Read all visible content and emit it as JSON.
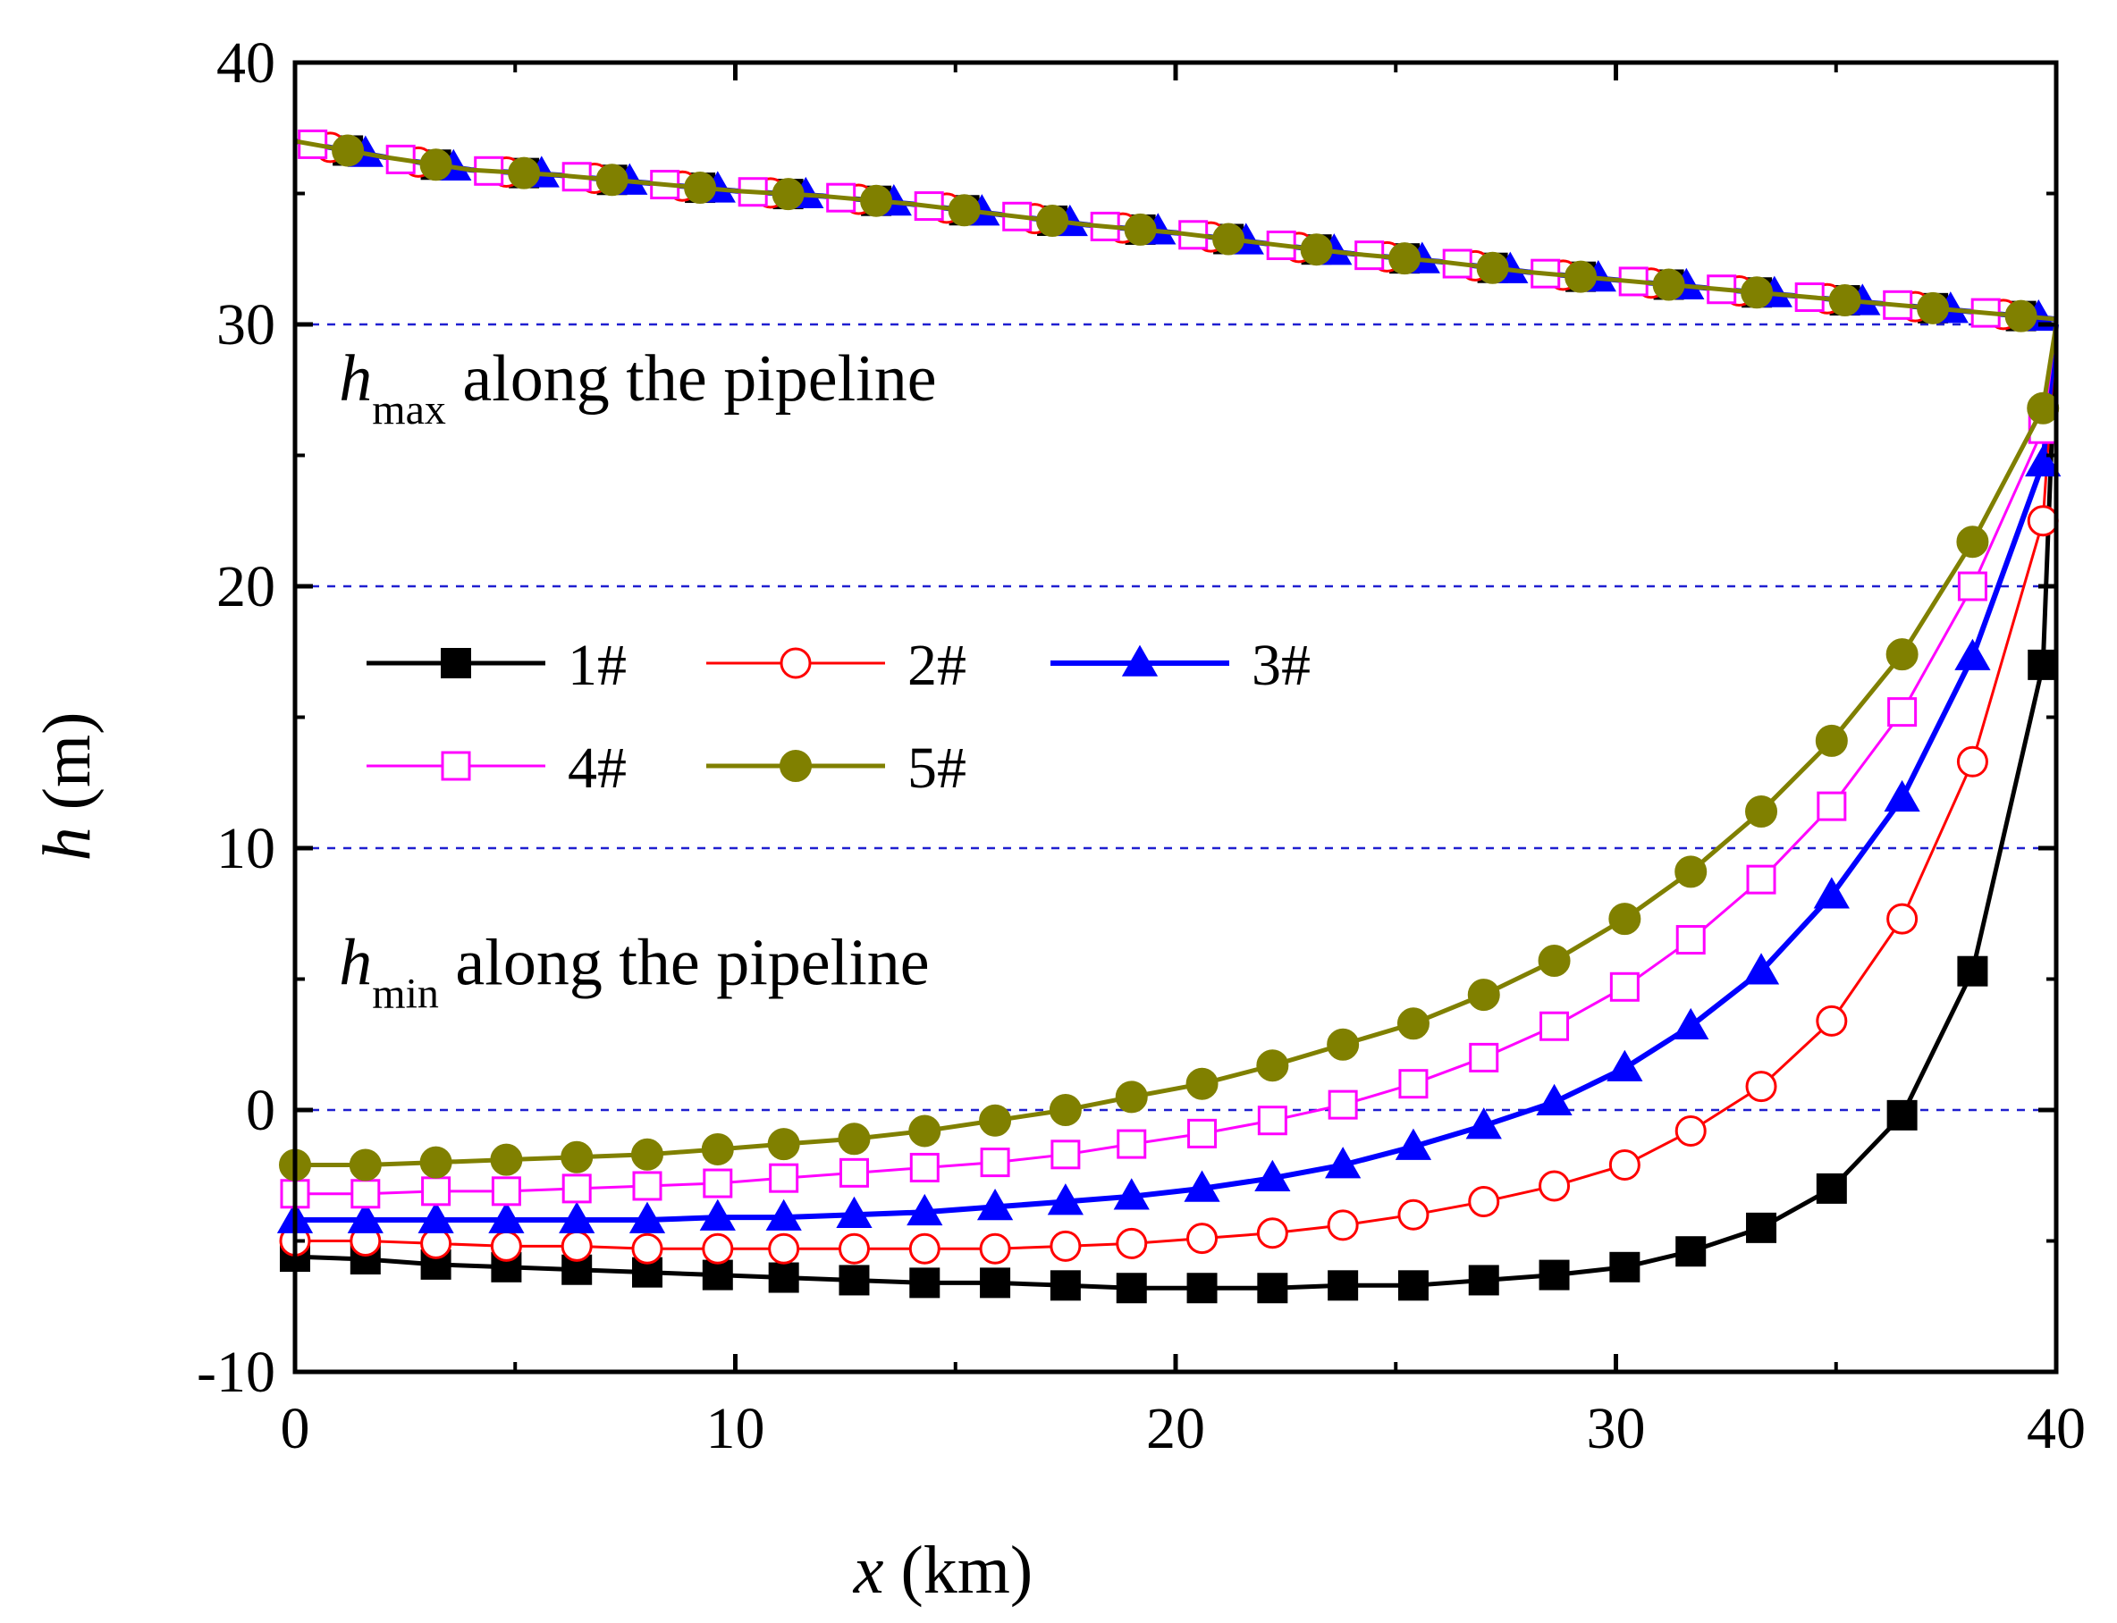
{
  "chart_data": {
    "type": "line",
    "title": "",
    "xlabel_var": "x",
    "xlabel_unit": " (km)",
    "ylabel_var": "h",
    "ylabel_unit": " (m)",
    "xlim": [
      0,
      40
    ],
    "ylim": [
      -10,
      40
    ],
    "xticks": [
      0,
      10,
      20,
      30,
      40
    ],
    "yticks": [
      -10,
      0,
      10,
      20,
      30,
      40
    ],
    "xtick_labels": [
      "0",
      "10",
      "20",
      "30",
      "40"
    ],
    "ytick_labels": [
      "-10",
      "0",
      "10",
      "20",
      "30",
      "40"
    ],
    "reference_lines_y": [
      0,
      10,
      20,
      30
    ],
    "reference_line_color": "#1f1fd0",
    "annotations": [
      {
        "var": "h",
        "sub": "max",
        "text": " along the pipeline",
        "anchor": [
          1.0,
          27.1
        ]
      },
      {
        "var": "h",
        "sub": "min",
        "text": " along the pipeline",
        "anchor": [
          1.0,
          4.8
        ]
      }
    ],
    "legend": {
      "position": "center-left",
      "columns": 3
    },
    "series": [
      {
        "name": "1#",
        "color": "#000000",
        "marker": "square-filled",
        "hmax_x": [
          0,
          2,
          4,
          6,
          8,
          10,
          12,
          14,
          16,
          18,
          20,
          22,
          24,
          26,
          28,
          30,
          32,
          34,
          36,
          38,
          40
        ],
        "hmax_y": [
          37.0,
          36.4,
          35.9,
          35.7,
          35.4,
          35.1,
          34.9,
          34.6,
          34.2,
          33.8,
          33.5,
          33.1,
          32.7,
          32.4,
          32.0,
          31.7,
          31.4,
          31.1,
          30.8,
          30.5,
          30.2
        ],
        "hmin_x": [
          0,
          1.6,
          3.2,
          4.8,
          6.4,
          8.0,
          9.6,
          11.1,
          12.7,
          14.3,
          15.9,
          17.5,
          19.0,
          20.6,
          22.2,
          23.8,
          25.4,
          27.0,
          28.6,
          30.2,
          31.7,
          33.3,
          34.9,
          36.5,
          38.1,
          39.7,
          40.0
        ],
        "hmin_y": [
          -5.6,
          -5.7,
          -5.9,
          -6.0,
          -6.1,
          -6.2,
          -6.3,
          -6.4,
          -6.5,
          -6.6,
          -6.6,
          -6.7,
          -6.8,
          -6.8,
          -6.8,
          -6.7,
          -6.7,
          -6.5,
          -6.3,
          -6.0,
          -5.4,
          -4.5,
          -3.0,
          -0.2,
          5.3,
          17.0,
          30.0
        ]
      },
      {
        "name": "2#",
        "color": "#ff0000",
        "marker": "circle-open",
        "hmax_x": [
          0,
          2,
          4,
          6,
          8,
          10,
          12,
          14,
          16,
          18,
          20,
          22,
          24,
          26,
          28,
          30,
          32,
          34,
          36,
          38,
          40
        ],
        "hmax_y": [
          37.0,
          36.4,
          35.9,
          35.7,
          35.4,
          35.1,
          34.9,
          34.6,
          34.2,
          33.8,
          33.5,
          33.1,
          32.7,
          32.4,
          32.0,
          31.7,
          31.4,
          31.1,
          30.8,
          30.5,
          30.2
        ],
        "hmin_x": [
          0,
          1.6,
          3.2,
          4.8,
          6.4,
          8.0,
          9.6,
          11.1,
          12.7,
          14.3,
          15.9,
          17.5,
          19.0,
          20.6,
          22.2,
          23.8,
          25.4,
          27.0,
          28.6,
          30.2,
          31.7,
          33.3,
          34.9,
          36.5,
          38.1,
          39.7,
          40.0
        ],
        "hmin_y": [
          -5.0,
          -5.0,
          -5.1,
          -5.2,
          -5.2,
          -5.3,
          -5.3,
          -5.3,
          -5.3,
          -5.3,
          -5.3,
          -5.2,
          -5.1,
          -4.9,
          -4.7,
          -4.4,
          -4.0,
          -3.5,
          -2.9,
          -2.1,
          -0.8,
          0.9,
          3.4,
          7.3,
          13.3,
          22.5,
          30.0
        ]
      },
      {
        "name": "3#",
        "color": "#0000ff",
        "marker": "triangle-filled",
        "hmax_x": [
          0,
          2,
          4,
          6,
          8,
          10,
          12,
          14,
          16,
          18,
          20,
          22,
          24,
          26,
          28,
          30,
          32,
          34,
          36,
          38,
          40
        ],
        "hmax_y": [
          37.0,
          36.4,
          35.9,
          35.7,
          35.4,
          35.1,
          34.9,
          34.6,
          34.2,
          33.8,
          33.5,
          33.1,
          32.7,
          32.4,
          32.0,
          31.7,
          31.4,
          31.1,
          30.8,
          30.5,
          30.2
        ],
        "hmin_x": [
          0,
          1.6,
          3.2,
          4.8,
          6.4,
          8.0,
          9.6,
          11.1,
          12.7,
          14.3,
          15.9,
          17.5,
          19.0,
          20.6,
          22.2,
          23.8,
          25.4,
          27.0,
          28.6,
          30.2,
          31.7,
          33.3,
          34.9,
          36.5,
          38.1,
          39.7,
          40.0
        ],
        "hmin_y": [
          -4.2,
          -4.2,
          -4.2,
          -4.2,
          -4.2,
          -4.2,
          -4.1,
          -4.1,
          -4.0,
          -3.9,
          -3.7,
          -3.5,
          -3.3,
          -3.0,
          -2.6,
          -2.1,
          -1.4,
          -0.6,
          0.3,
          1.6,
          3.2,
          5.3,
          8.2,
          11.9,
          17.3,
          24.7,
          30.0
        ]
      },
      {
        "name": "4#",
        "color": "#ff00ff",
        "marker": "square-open",
        "hmax_x": [
          0,
          2,
          4,
          6,
          8,
          10,
          12,
          14,
          16,
          18,
          20,
          22,
          24,
          26,
          28,
          30,
          32,
          34,
          36,
          38,
          40
        ],
        "hmax_y": [
          37.0,
          36.4,
          35.9,
          35.7,
          35.4,
          35.1,
          34.9,
          34.6,
          34.2,
          33.8,
          33.5,
          33.1,
          32.7,
          32.4,
          32.0,
          31.7,
          31.4,
          31.1,
          30.8,
          30.5,
          30.2
        ],
        "hmin_x": [
          0,
          1.6,
          3.2,
          4.8,
          6.4,
          8.0,
          9.6,
          11.1,
          12.7,
          14.3,
          15.9,
          17.5,
          19.0,
          20.6,
          22.2,
          23.8,
          25.4,
          27.0,
          28.6,
          30.2,
          31.7,
          33.3,
          34.9,
          36.5,
          38.1,
          39.7,
          40.0
        ],
        "hmin_y": [
          -3.2,
          -3.2,
          -3.1,
          -3.1,
          -3.0,
          -2.9,
          -2.8,
          -2.6,
          -2.4,
          -2.2,
          -2.0,
          -1.7,
          -1.3,
          -0.9,
          -0.4,
          0.2,
          1.0,
          2.0,
          3.2,
          4.7,
          6.5,
          8.8,
          11.6,
          15.2,
          20.0,
          26.0,
          30.0
        ]
      },
      {
        "name": "5#",
        "color": "#808000",
        "marker": "circle-filled",
        "hmax_x": [
          0,
          2,
          4,
          6,
          8,
          10,
          12,
          14,
          16,
          18,
          20,
          22,
          24,
          26,
          28,
          30,
          32,
          34,
          36,
          38,
          40
        ],
        "hmax_y": [
          37.0,
          36.4,
          35.9,
          35.7,
          35.4,
          35.1,
          34.9,
          34.6,
          34.2,
          33.8,
          33.5,
          33.1,
          32.7,
          32.4,
          32.0,
          31.7,
          31.4,
          31.1,
          30.8,
          30.5,
          30.2
        ],
        "hmin_x": [
          0,
          1.6,
          3.2,
          4.8,
          6.4,
          8.0,
          9.6,
          11.1,
          12.7,
          14.3,
          15.9,
          17.5,
          19.0,
          20.6,
          22.2,
          23.8,
          25.4,
          27.0,
          28.6,
          30.2,
          31.7,
          33.3,
          34.9,
          36.5,
          38.1,
          39.7,
          40.0
        ],
        "hmin_y": [
          -2.1,
          -2.1,
          -2.0,
          -1.9,
          -1.8,
          -1.7,
          -1.5,
          -1.3,
          -1.1,
          -0.8,
          -0.4,
          0.0,
          0.5,
          1.0,
          1.7,
          2.5,
          3.3,
          4.4,
          5.7,
          7.3,
          9.1,
          11.4,
          14.1,
          17.4,
          21.7,
          26.8,
          30.0
        ]
      }
    ]
  }
}
